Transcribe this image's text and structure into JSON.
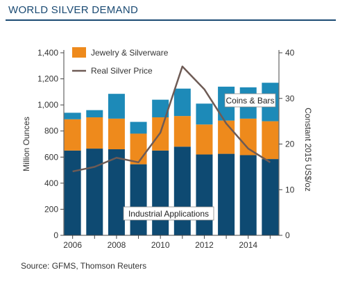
{
  "header": {
    "title": "WORLD SILVER DEMAND"
  },
  "footer": {
    "source": "Source: GFMS, Thomson Reuters"
  },
  "colors": {
    "industrial": "#0e4a72",
    "jewelry": "#ee8a1c",
    "coins": "#1d8ab8",
    "price_line": "#6e5b55",
    "title": "#1a4a73"
  },
  "chart_data": {
    "type": "bar",
    "stacked": true,
    "x": [
      2006,
      2007,
      2008,
      2009,
      2010,
      2011,
      2012,
      2013,
      2014,
      2015
    ],
    "x_tick_labels": [
      "2006",
      "2008",
      "2010",
      "2012",
      "2014"
    ],
    "x_tick_values": [
      2006,
      2008,
      2010,
      2012,
      2014
    ],
    "ylabel": "Million Ounces",
    "ylim": [
      0,
      1400
    ],
    "y_ticks": [
      "0",
      "200",
      "400",
      "600",
      "800",
      "1,000",
      "1,200",
      "1,400"
    ],
    "y2label": "Constant 2015 US$/oz",
    "y2lim": [
      0,
      40
    ],
    "y2_ticks": [
      "0",
      "10",
      "20",
      "30",
      "40"
    ],
    "series": [
      {
        "name": "Industrial Applications",
        "values": [
          650,
          665,
          660,
          545,
          650,
          680,
          620,
          625,
          615,
          585
        ]
      },
      {
        "name": "Jewelry & Silverware",
        "values": [
          240,
          240,
          235,
          235,
          255,
          235,
          230,
          255,
          280,
          290
        ]
      },
      {
        "name": "Coins & Bars",
        "values": [
          50,
          55,
          190,
          90,
          135,
          210,
          160,
          260,
          240,
          295
        ]
      }
    ],
    "line_series": {
      "name": "Real Silver Price",
      "axis": "right",
      "values": [
        14.0,
        15.0,
        17.0,
        16.0,
        22.5,
        37.0,
        32.0,
        24.5,
        19.0,
        16.0
      ]
    },
    "legend": {
      "placement": "top-left",
      "entries": [
        "Jewelry & Silverware",
        "Real Silver Price"
      ]
    },
    "annotations": {
      "coins": "Coins & Bars",
      "industrial": "Industrial Applications"
    },
    "grid": false
  }
}
